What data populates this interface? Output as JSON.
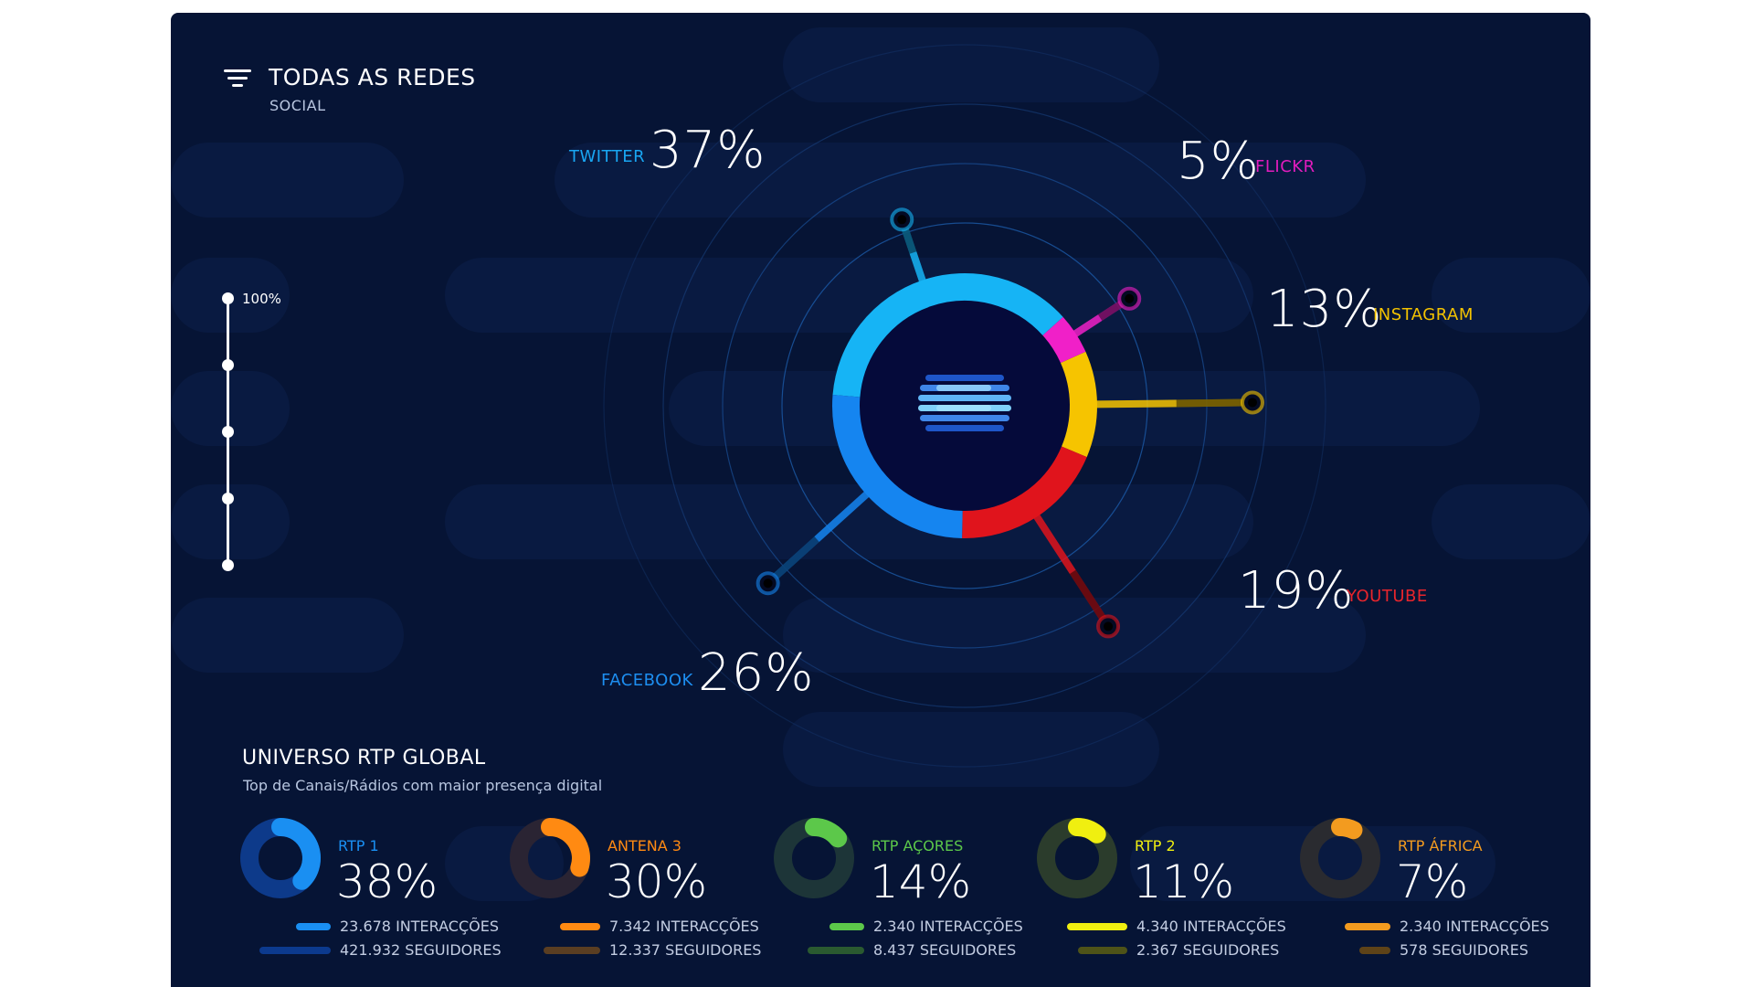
{
  "header": {
    "title": "TODAS AS REDES",
    "subtitle": "SOCIAL"
  },
  "slider": {
    "label": "100%"
  },
  "chart_data": [
    {
      "type": "pie",
      "title": "TODAS AS REDES",
      "subtitle": "SOCIAL",
      "categories": [
        "TWITTER",
        "FLICKR",
        "INSTAGRAM",
        "YOUTUBE",
        "FACEBOOK"
      ],
      "values": [
        37,
        5,
        13,
        19,
        26
      ],
      "labels": [
        "37%",
        "5%",
        "13%",
        "19%",
        "26%"
      ],
      "colors": [
        "#16b4f5",
        "#f020c8",
        "#f6c400",
        "#e0141c",
        "#1585f0"
      ],
      "label_colors": [
        "#19a6f2",
        "#e21cbe",
        "#f3c200",
        "#e8252c",
        "#1d8ef0"
      ]
    },
    {
      "type": "pie",
      "title": "UNIVERSO RTP GLOBAL",
      "subtitle": "Top de Canais/Rádios com maior presença digital",
      "categories": [
        "RTP 1",
        "ANTENA 3",
        "RTP AÇORES",
        "RTP 2",
        "RTP ÁFRICA"
      ],
      "values": [
        38,
        30,
        14,
        11,
        7
      ],
      "labels": [
        "38%",
        "30%",
        "14%",
        "11%",
        "7%"
      ],
      "interaccoes": [
        "23.678 INTERACÇÕES",
        "7.342 INTERACÇÕES",
        "2.340 INTERACÇÕES",
        "4.340 INTERACÇÕES",
        "2.340 INTERACÇÕES"
      ],
      "seguidores": [
        "421.932 SEGUIDORES",
        "12.337 SEGUIDORES",
        "8.437 SEGUIDORES",
        "2.367 SEGUIDORES",
        "578 SEGUIDORES"
      ],
      "colors": [
        "#1a8ff2",
        "#ff8a12",
        "#5cc84a",
        "#f0ef10",
        "#f39b1f"
      ],
      "dark_colors": [
        "#0c3a8e",
        "#5a3e22",
        "#2a5a30",
        "#4e5318",
        "#5e4318"
      ],
      "track_colors": [
        "#0d3a8a",
        "#2a2433",
        "#1d3538",
        "#2b3c2c",
        "#2a2b30"
      ],
      "name_colors": [
        "#1a8ff2",
        "#ff8a12",
        "#5cc84a",
        "#f0ef10",
        "#f39b1f"
      ]
    }
  ],
  "colors": {
    "background": "#061435",
    "page": "#ffffff"
  }
}
